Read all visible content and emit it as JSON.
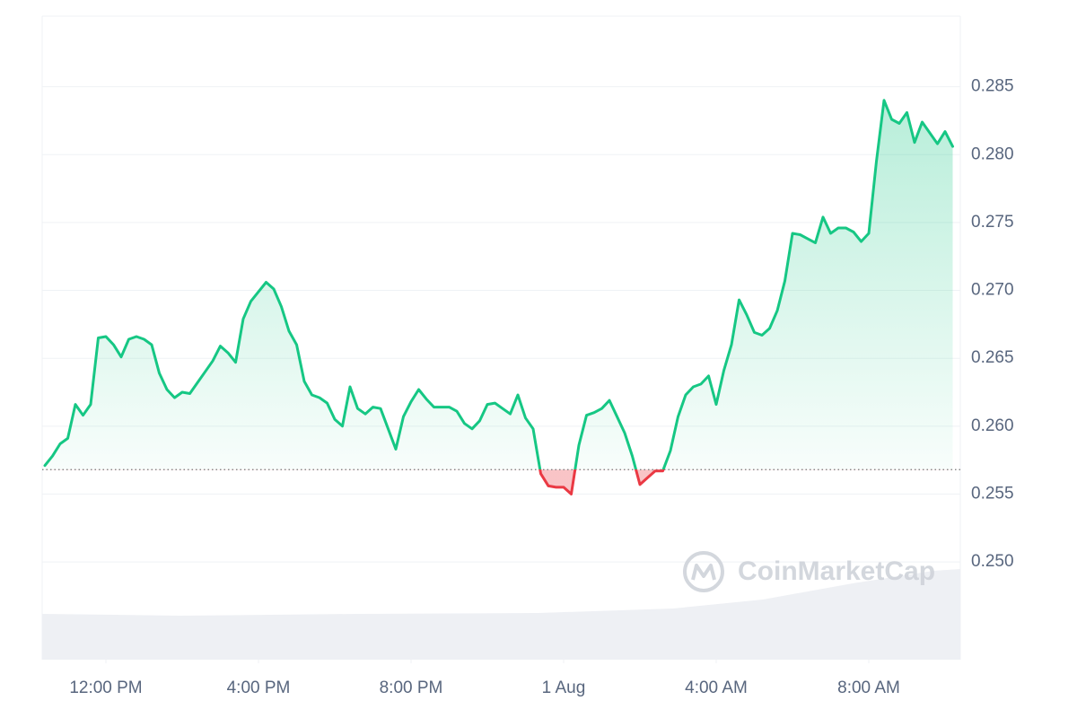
{
  "chart_data": {
    "type": "line",
    "watermark": "CoinMarketCap",
    "baseline": 0.2568,
    "color_up": "#16c784",
    "color_down": "#ea3943",
    "xlim": [
      10.33,
      34.4
    ],
    "ylim": [
      0.2428,
      0.2902
    ],
    "xticks": [
      {
        "value": 12,
        "label": "12:00 PM"
      },
      {
        "value": 16,
        "label": "4:00 PM"
      },
      {
        "value": 20,
        "label": "8:00 PM"
      },
      {
        "value": 24,
        "label": "1 Aug"
      },
      {
        "value": 28,
        "label": "4:00 AM"
      },
      {
        "value": 32,
        "label": "8:00 AM"
      }
    ],
    "yticks": [
      {
        "value": 0.25,
        "label": "0.250"
      },
      0.255,
      {
        "value": 0.26,
        "label": "0.260"
      },
      0.265,
      {
        "value": 0.27,
        "label": "0.270"
      },
      0.275,
      {
        "value": 0.28,
        "label": "0.280"
      },
      0.285
    ],
    "grid": true,
    "x": [
      10.4,
      10.6,
      10.8,
      11.0,
      11.2,
      11.4,
      11.6,
      11.8,
      12.0,
      12.2,
      12.4,
      12.6,
      12.8,
      13.0,
      13.2,
      13.4,
      13.6,
      13.8,
      14.0,
      14.2,
      14.4,
      14.6,
      14.8,
      15.0,
      15.2,
      15.4,
      15.6,
      15.8,
      16.0,
      16.2,
      16.4,
      16.6,
      16.8,
      17.0,
      17.2,
      17.4,
      17.6,
      17.8,
      18.0,
      18.2,
      18.4,
      18.6,
      18.8,
      19.0,
      19.2,
      19.4,
      19.6,
      19.8,
      20.0,
      20.2,
      20.4,
      20.6,
      20.8,
      21.0,
      21.2,
      21.4,
      21.6,
      21.8,
      22.0,
      22.2,
      22.4,
      22.6,
      22.8,
      23.0,
      23.2,
      23.4,
      23.6,
      23.8,
      24.0,
      24.2,
      24.4,
      24.6,
      24.8,
      25.0,
      25.2,
      25.4,
      25.6,
      25.8,
      26.0,
      26.2,
      26.4,
      26.6,
      26.8,
      27.0,
      27.2,
      27.4,
      27.6,
      27.8,
      28.0,
      28.2,
      28.4,
      28.6,
      28.8,
      29.0,
      29.2,
      29.4,
      29.6,
      29.8,
      30.0,
      30.2,
      30.4,
      30.6,
      30.8,
      31.0,
      31.2,
      31.4,
      31.6,
      31.8,
      32.0,
      32.2,
      32.4,
      32.6,
      32.8,
      33.0,
      33.2,
      33.4,
      33.6,
      33.8,
      34.0,
      34.2
    ],
    "values": [
      0.2571,
      0.2578,
      0.2587,
      0.2591,
      0.2616,
      0.2608,
      0.2616,
      0.2665,
      0.2666,
      0.266,
      0.2651,
      0.2664,
      0.2666,
      0.2664,
      0.266,
      0.2639,
      0.2627,
      0.2621,
      0.2625,
      0.2624,
      0.2632,
      0.264,
      0.2648,
      0.2659,
      0.2654,
      0.2647,
      0.2679,
      0.2692,
      0.2699,
      0.2706,
      0.2701,
      0.2688,
      0.267,
      0.266,
      0.2633,
      0.2623,
      0.2621,
      0.2617,
      0.2605,
      0.26,
      0.2629,
      0.2613,
      0.2609,
      0.2614,
      0.2613,
      0.2598,
      0.2583,
      0.2607,
      0.2618,
      0.2627,
      0.262,
      0.2614,
      0.2614,
      0.2614,
      0.2611,
      0.2602,
      0.2598,
      0.2604,
      0.2616,
      0.2617,
      0.2613,
      0.2609,
      0.2623,
      0.2606,
      0.2598,
      0.2565,
      0.2556,
      0.2555,
      0.2555,
      0.255,
      0.2586,
      0.2608,
      0.261,
      0.2613,
      0.2619,
      0.2607,
      0.2595,
      0.2578,
      0.2557,
      0.2562,
      0.2567,
      0.2567,
      0.2582,
      0.2607,
      0.2623,
      0.2629,
      0.2631,
      0.2637,
      0.2616,
      0.2641,
      0.266,
      0.2693,
      0.2682,
      0.2669,
      0.2667,
      0.2672,
      0.2685,
      0.2707,
      0.2742,
      0.2741,
      0.2738,
      0.2735,
      0.2754,
      0.2742,
      0.2746,
      0.2746,
      0.2743,
      0.2736,
      0.2742,
      0.2795,
      0.284,
      0.2826,
      0.2823,
      0.2831,
      0.2809,
      0.2824,
      0.2816,
      0.2808,
      0.2817,
      0.2806
    ]
  }
}
